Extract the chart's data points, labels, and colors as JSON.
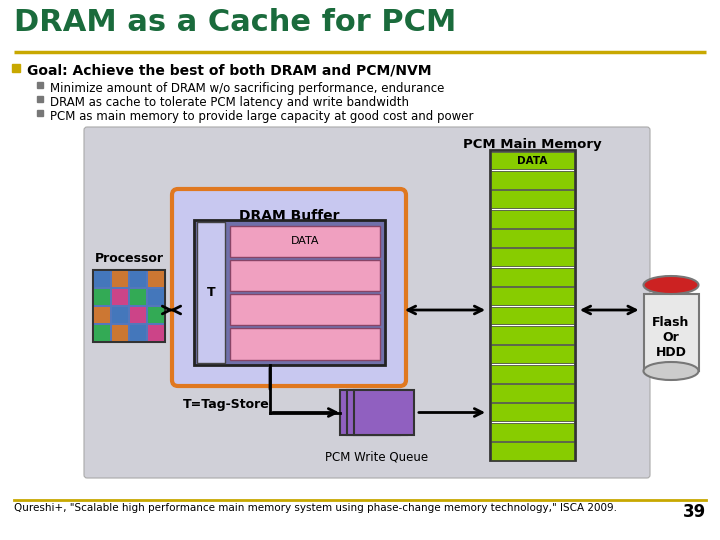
{
  "title": "DRAM as a Cache for PCM",
  "title_color": "#1a6b3c",
  "title_fontsize": 22,
  "bg_color": "#ffffff",
  "separator_color": "#c8a800",
  "bullet_color": "#c8a800",
  "bullet_main": "Goal: Achieve the best of both DRAM and PCM/NVM",
  "bullets": [
    "Minimize amount of DRAM w/o sacrificing performance, endurance",
    "DRAM as cache to tolerate PCM latency and write bandwidth",
    "PCM as main memory to provide large capacity at good cost and power"
  ],
  "diagram_bg": "#d0d0d8",
  "pcm_label": "PCM Main Memory",
  "pcm_stripe_color": "#88cc00",
  "pcm_data_label": "DATA",
  "pcm_data_bg": "#88cc00",
  "dram_buffer_label": "DRAM Buffer",
  "dram_buffer_border": "#e07820",
  "dram_buffer_bg": "#c8c8f0",
  "dram_inner_bg": "#7070aa",
  "dram_inner_border": "#222222",
  "tag_label": "T",
  "tag_bg": "#c8c8f0",
  "data_rows_bg": "#f0a0c0",
  "data_label": "DATA",
  "t_tag_store_label": "T=Tag-Store",
  "write_queue_label": "PCM Write Queue",
  "write_queue_bg": "#9060c0",
  "processor_label": "Processor",
  "flash_label": "Flash\nOr\nHDD",
  "flash_body_color": "#eeeeee",
  "flash_top_color": "#cc2222",
  "footer_text": "Qureshi+, \"Scalable high performance main memory system using phase-change memory technology,\" ISCA 2009.",
  "page_num": "39",
  "footer_color": "#000000",
  "footer_fontsize": 7.5
}
